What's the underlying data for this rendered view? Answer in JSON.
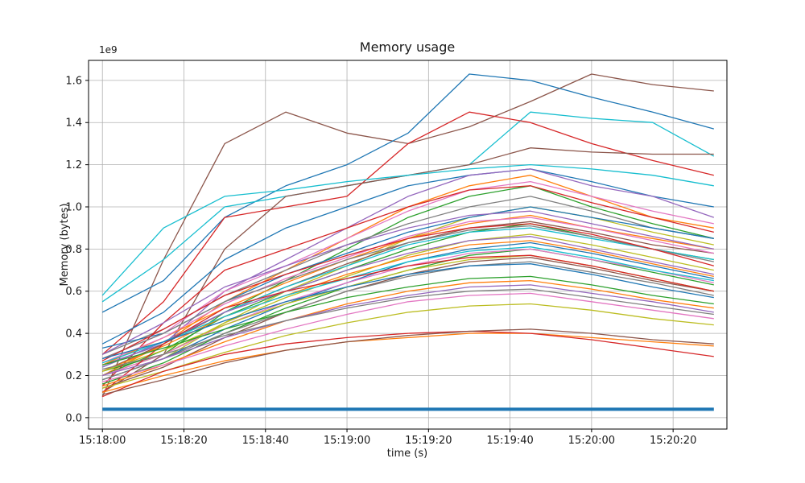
{
  "chart_data": {
    "type": "line",
    "title": "Memory usage",
    "xlabel": "time (s)",
    "ylabel": "Memory (bytes)",
    "offset_label": "1e9",
    "y_unit": "1e9 bytes",
    "grid": true,
    "legend": "none",
    "xlim": [
      -3.4,
      153.2
    ],
    "ylim": [
      -0.054,
      1.695
    ],
    "x_ticks": [
      {
        "t": 0,
        "label": "15:18:00"
      },
      {
        "t": 20,
        "label": "15:18:20"
      },
      {
        "t": 40,
        "label": "15:18:40"
      },
      {
        "t": 60,
        "label": "15:19:00"
      },
      {
        "t": 80,
        "label": "15:19:20"
      },
      {
        "t": 100,
        "label": "15:19:40"
      },
      {
        "t": 120,
        "label": "15:20:00"
      },
      {
        "t": 140,
        "label": "15:20:20"
      }
    ],
    "y_ticks": [
      {
        "v": 0.0,
        "label": "0.0"
      },
      {
        "v": 0.2,
        "label": "0.2"
      },
      {
        "v": 0.4,
        "label": "0.4"
      },
      {
        "v": 0.6,
        "label": "0.6"
      },
      {
        "v": 0.8,
        "label": "0.8"
      },
      {
        "v": 1.0,
        "label": "1.0"
      },
      {
        "v": 1.2,
        "label": "1.2"
      },
      {
        "v": 1.4,
        "label": "1.4"
      },
      {
        "v": 1.6,
        "label": "1.6"
      }
    ],
    "x": [
      0,
      15,
      30,
      45,
      60,
      75,
      90,
      105,
      120,
      135,
      150
    ],
    "series": [
      {
        "c": "#8c564b",
        "v": [
          0.1,
          0.75,
          1.3,
          1.45,
          1.35,
          1.3,
          1.38,
          1.5,
          1.63,
          1.58,
          1.55
        ]
      },
      {
        "c": "#1f77b4",
        "v": [
          0.5,
          0.65,
          0.95,
          1.1,
          1.2,
          1.35,
          1.63,
          1.6,
          1.52,
          1.45,
          1.37
        ]
      },
      {
        "c": "#17becf",
        "v": [
          0.55,
          0.75,
          1.0,
          1.05,
          1.1,
          1.15,
          1.2,
          1.45,
          1.42,
          1.4,
          1.24
        ]
      },
      {
        "c": "#d62728",
        "v": [
          0.3,
          0.55,
          0.95,
          1.0,
          1.05,
          1.3,
          1.45,
          1.4,
          1.3,
          1.22,
          1.15
        ]
      },
      {
        "c": "#8c564b",
        "v": [
          0.12,
          0.3,
          0.8,
          1.05,
          1.1,
          1.15,
          1.2,
          1.28,
          1.26,
          1.25,
          1.25
        ]
      },
      {
        "c": "#17becf",
        "v": [
          0.58,
          0.9,
          1.05,
          1.08,
          1.12,
          1.15,
          1.18,
          1.2,
          1.18,
          1.15,
          1.1
        ]
      },
      {
        "c": "#1f77b4",
        "v": [
          0.35,
          0.5,
          0.75,
          0.9,
          1.0,
          1.1,
          1.15,
          1.18,
          1.12,
          1.05,
          1.0
        ]
      },
      {
        "c": "#9467bd",
        "v": [
          0.25,
          0.35,
          0.6,
          0.75,
          0.9,
          1.05,
          1.15,
          1.18,
          1.1,
          1.05,
          0.95
        ]
      },
      {
        "c": "#ff7f0e",
        "v": [
          0.2,
          0.35,
          0.55,
          0.7,
          0.85,
          1.0,
          1.1,
          1.15,
          1.05,
          0.95,
          0.9
        ]
      },
      {
        "c": "#2ca02c",
        "v": [
          0.22,
          0.3,
          0.5,
          0.65,
          0.8,
          0.95,
          1.05,
          1.1,
          1.0,
          0.92,
          0.85
        ]
      },
      {
        "c": "#e377c2",
        "v": [
          0.28,
          0.4,
          0.6,
          0.72,
          0.85,
          0.98,
          1.08,
          1.12,
          1.05,
          0.98,
          0.92
        ]
      },
      {
        "c": "#7f7f7f",
        "v": [
          0.3,
          0.42,
          0.58,
          0.7,
          0.82,
          0.92,
          1.0,
          1.05,
          0.98,
          0.9,
          0.85
        ]
      },
      {
        "c": "#bcbd22",
        "v": [
          0.18,
          0.28,
          0.45,
          0.6,
          0.72,
          0.85,
          0.95,
          1.0,
          0.95,
          0.88,
          0.82
        ]
      },
      {
        "c": "#d62728",
        "v": [
          0.15,
          0.45,
          0.7,
          0.8,
          0.9,
          1.0,
          1.08,
          1.1,
          1.02,
          0.95,
          0.88
        ]
      },
      {
        "c": "#1f77b4",
        "v": [
          0.33,
          0.4,
          0.55,
          0.68,
          0.78,
          0.88,
          0.95,
          1.0,
          0.95,
          0.9,
          0.85
        ]
      },
      {
        "c": "#ff7f0e",
        "v": [
          0.25,
          0.38,
          0.52,
          0.64,
          0.75,
          0.85,
          0.92,
          0.96,
          0.9,
          0.85,
          0.8
        ]
      },
      {
        "c": "#2ca02c",
        "v": [
          0.2,
          0.32,
          0.48,
          0.6,
          0.7,
          0.8,
          0.88,
          0.92,
          0.86,
          0.8,
          0.75
        ]
      },
      {
        "c": "#9467bd",
        "v": [
          0.3,
          0.45,
          0.62,
          0.72,
          0.82,
          0.9,
          0.96,
          0.98,
          0.92,
          0.86,
          0.8
        ]
      },
      {
        "c": "#8c564b",
        "v": [
          0.22,
          0.35,
          0.5,
          0.62,
          0.73,
          0.83,
          0.9,
          0.93,
          0.88,
          0.82,
          0.78
        ]
      },
      {
        "c": "#e377c2",
        "v": [
          0.26,
          0.38,
          0.54,
          0.66,
          0.76,
          0.86,
          0.93,
          0.95,
          0.9,
          0.84,
          0.78
        ]
      },
      {
        "c": "#17becf",
        "v": [
          0.24,
          0.36,
          0.5,
          0.62,
          0.72,
          0.82,
          0.88,
          0.9,
          0.85,
          0.8,
          0.75
        ]
      },
      {
        "c": "#7f7f7f",
        "v": [
          0.28,
          0.4,
          0.55,
          0.65,
          0.75,
          0.83,
          0.89,
          0.91,
          0.86,
          0.8,
          0.74
        ]
      },
      {
        "c": "#bcbd22",
        "v": [
          0.2,
          0.3,
          0.45,
          0.57,
          0.67,
          0.77,
          0.84,
          0.87,
          0.82,
          0.76,
          0.7
        ]
      },
      {
        "c": "#d62728",
        "v": [
          0.27,
          0.42,
          0.58,
          0.68,
          0.77,
          0.85,
          0.9,
          0.92,
          0.87,
          0.8,
          0.72
        ]
      },
      {
        "c": "#1f77b4",
        "v": [
          0.18,
          0.28,
          0.42,
          0.54,
          0.64,
          0.74,
          0.8,
          0.83,
          0.78,
          0.72,
          0.66
        ]
      },
      {
        "c": "#ff7f0e",
        "v": [
          0.22,
          0.34,
          0.48,
          0.58,
          0.68,
          0.76,
          0.82,
          0.84,
          0.79,
          0.73,
          0.67
        ]
      },
      {
        "c": "#2ca02c",
        "v": [
          0.16,
          0.26,
          0.4,
          0.52,
          0.62,
          0.7,
          0.77,
          0.8,
          0.75,
          0.69,
          0.63
        ]
      },
      {
        "c": "#9467bd",
        "v": [
          0.24,
          0.36,
          0.5,
          0.6,
          0.7,
          0.78,
          0.84,
          0.86,
          0.8,
          0.74,
          0.68
        ]
      },
      {
        "c": "#e377c2",
        "v": [
          0.2,
          0.3,
          0.44,
          0.55,
          0.64,
          0.72,
          0.78,
          0.8,
          0.75,
          0.7,
          0.64
        ]
      },
      {
        "c": "#8c564b",
        "v": [
          0.14,
          0.24,
          0.38,
          0.5,
          0.6,
          0.68,
          0.74,
          0.76,
          0.71,
          0.65,
          0.6
        ]
      },
      {
        "c": "#17becf",
        "v": [
          0.26,
          0.36,
          0.48,
          0.58,
          0.66,
          0.74,
          0.79,
          0.81,
          0.76,
          0.7,
          0.65
        ]
      },
      {
        "c": "#7f7f7f",
        "v": [
          0.18,
          0.28,
          0.4,
          0.5,
          0.6,
          0.67,
          0.72,
          0.74,
          0.69,
          0.64,
          0.58
        ]
      },
      {
        "c": "#bcbd22",
        "v": [
          0.22,
          0.32,
          0.44,
          0.54,
          0.62,
          0.7,
          0.75,
          0.77,
          0.72,
          0.66,
          0.6
        ]
      },
      {
        "c": "#d62728",
        "v": [
          0.12,
          0.35,
          0.52,
          0.6,
          0.66,
          0.72,
          0.76,
          0.77,
          0.72,
          0.66,
          0.6
        ]
      },
      {
        "c": "#1f77b4",
        "v": [
          0.28,
          0.36,
          0.46,
          0.55,
          0.62,
          0.68,
          0.72,
          0.73,
          0.68,
          0.62,
          0.57
        ]
      },
      {
        "c": "#ff7f0e",
        "v": [
          0.15,
          0.25,
          0.36,
          0.46,
          0.54,
          0.6,
          0.64,
          0.65,
          0.61,
          0.56,
          0.52
        ]
      },
      {
        "c": "#2ca02c",
        "v": [
          0.25,
          0.33,
          0.42,
          0.5,
          0.57,
          0.62,
          0.66,
          0.67,
          0.63,
          0.58,
          0.54
        ]
      },
      {
        "c": "#9467bd",
        "v": [
          0.2,
          0.28,
          0.38,
          0.46,
          0.53,
          0.58,
          0.62,
          0.63,
          0.59,
          0.55,
          0.5
        ]
      },
      {
        "c": "#e377c2",
        "v": [
          0.17,
          0.25,
          0.34,
          0.42,
          0.49,
          0.55,
          0.58,
          0.59,
          0.55,
          0.51,
          0.47
        ]
      },
      {
        "c": "#7f7f7f",
        "v": [
          0.23,
          0.3,
          0.39,
          0.46,
          0.52,
          0.57,
          0.6,
          0.61,
          0.57,
          0.53,
          0.49
        ]
      },
      {
        "c": "#bcbd22",
        "v": [
          0.14,
          0.22,
          0.31,
          0.39,
          0.45,
          0.5,
          0.53,
          0.54,
          0.51,
          0.47,
          0.44
        ]
      },
      {
        "c": "#ff7f0e",
        "v": [
          0.12,
          0.2,
          0.27,
          0.32,
          0.36,
          0.38,
          0.4,
          0.4,
          0.38,
          0.36,
          0.34
        ]
      },
      {
        "c": "#d62728",
        "v": [
          0.1,
          0.22,
          0.3,
          0.35,
          0.38,
          0.4,
          0.41,
          0.4,
          0.37,
          0.33,
          0.29
        ]
      },
      {
        "c": "#8c564b",
        "v": [
          0.11,
          0.18,
          0.26,
          0.32,
          0.36,
          0.39,
          0.41,
          0.42,
          0.4,
          0.37,
          0.35
        ]
      },
      {
        "c": "#1f77b4",
        "w": 4,
        "v": [
          0.04,
          0.04,
          0.04,
          0.04,
          0.04,
          0.04,
          0.04,
          0.04,
          0.04,
          0.04,
          0.04
        ]
      }
    ],
    "style": {
      "grid_color": "#b0b0b0",
      "spine_color": "#000000",
      "background": "#ffffff",
      "default_line_width": 1.3
    }
  }
}
